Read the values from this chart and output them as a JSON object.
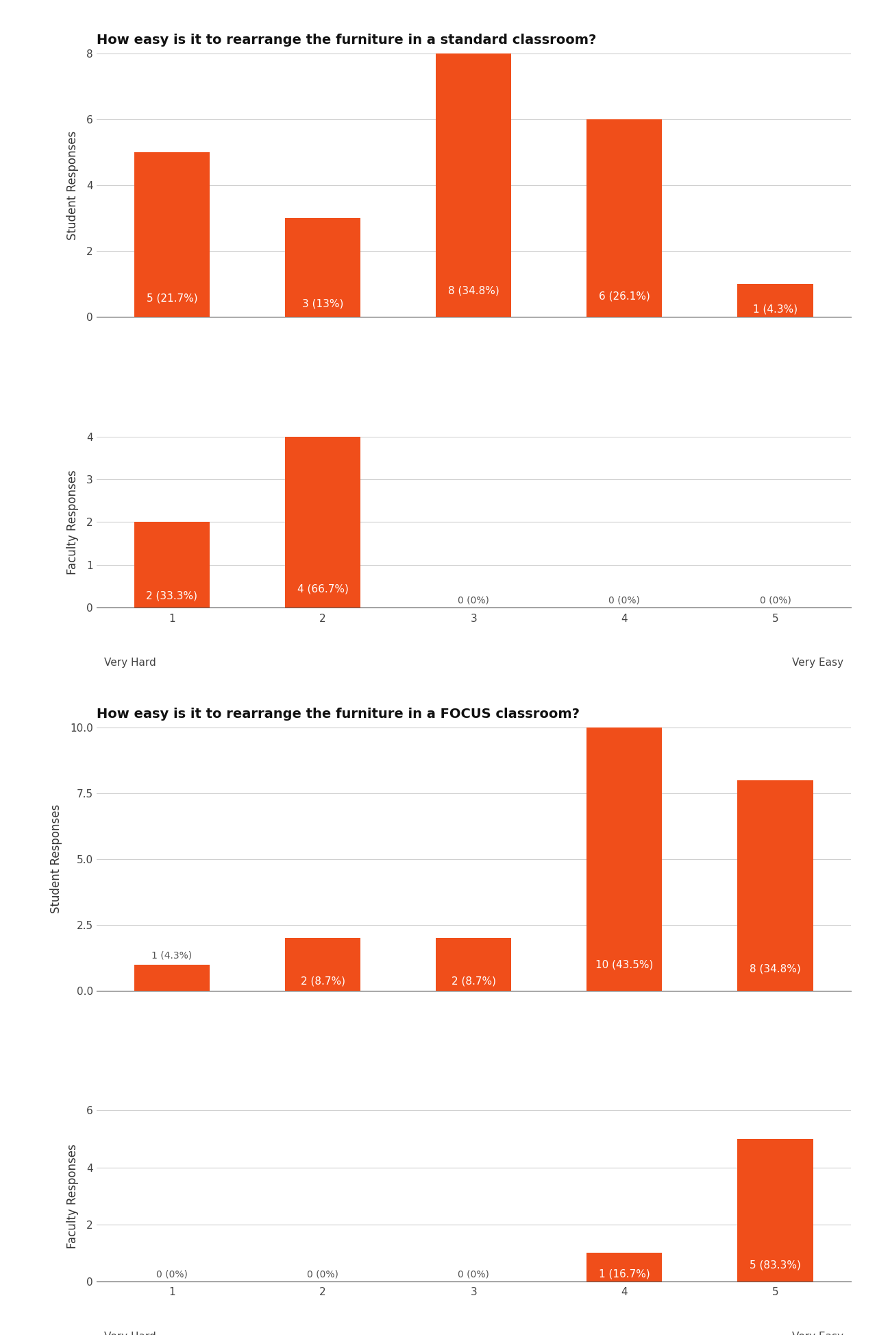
{
  "title1": "How easy is it to rearrange the furniture in a standard classroom?",
  "title2": "How easy is it to rearrange the furniture in a FOCUS classroom?",
  "bar_color": "#F04E1A",
  "categories": [
    1,
    2,
    3,
    4,
    5
  ],
  "standard_student_values": [
    5,
    3,
    8,
    6,
    1
  ],
  "standard_student_labels": [
    "5 (21.7%)",
    "3 (13%)",
    "8 (34.8%)",
    "6 (26.1%)",
    "1 (4.3%)"
  ],
  "standard_student_ylim": [
    0,
    8
  ],
  "standard_student_yticks": [
    0,
    2,
    4,
    6,
    8
  ],
  "standard_faculty_values": [
    2,
    4,
    0,
    0,
    0
  ],
  "standard_faculty_labels": [
    "2 (33.3%)",
    "4 (66.7%)",
    "0 (0%)",
    "0 (0%)",
    "0 (0%)"
  ],
  "standard_faculty_ylim": [
    0,
    4
  ],
  "standard_faculty_yticks": [
    0,
    1,
    2,
    3,
    4
  ],
  "focus_student_values": [
    1,
    2,
    2,
    10,
    8
  ],
  "focus_student_labels": [
    "1 (4.3%)",
    "2 (8.7%)",
    "2 (8.7%)",
    "10 (43.5%)",
    "8 (34.8%)"
  ],
  "focus_student_ylim": [
    0,
    10
  ],
  "focus_student_yticks": [
    0.0,
    2.5,
    5.0,
    7.5,
    10.0
  ],
  "focus_faculty_values": [
    0,
    0,
    0,
    1,
    5
  ],
  "focus_faculty_labels": [
    "0 (0%)",
    "0 (0%)",
    "0 (0%)",
    "1 (16.7%)",
    "5 (83.3%)"
  ],
  "focus_faculty_ylim": [
    0,
    6
  ],
  "focus_faculty_yticks": [
    0,
    2,
    4,
    6
  ],
  "ylabel_student": "Student Responses",
  "ylabel_faculty": "Faculty Responses",
  "xlabel_left": "Very Hard",
  "xlabel_right": "Very Easy",
  "bg_color": "#ffffff",
  "grid_color": "#d0d0d0",
  "bar_width": 0.5,
  "label_color_inside": "#ffffff",
  "label_color_outside": "#555555",
  "label_fontsize": 11,
  "title_fontsize": 14,
  "axis_label_fontsize": 12,
  "tick_fontsize": 11
}
